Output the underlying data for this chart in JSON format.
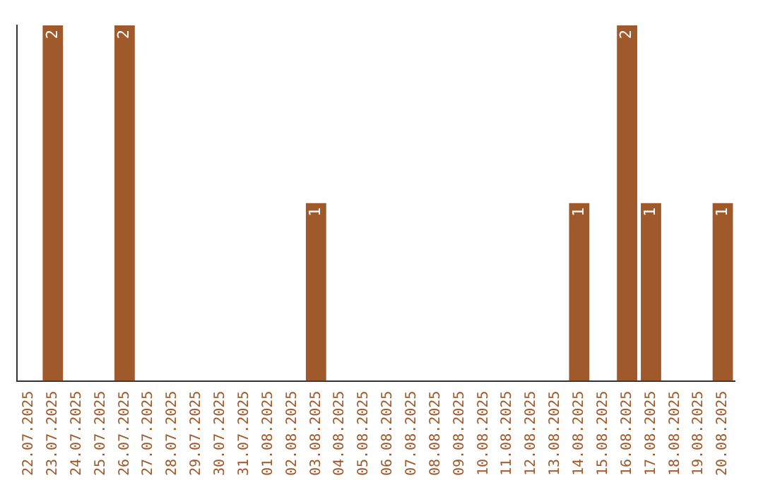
{
  "chart_data": {
    "type": "bar",
    "categories": [
      "22.07.2025",
      "23.07.2025",
      "24.07.2025",
      "25.07.2025",
      "26.07.2025",
      "27.07.2025",
      "28.07.2025",
      "29.07.2025",
      "30.07.2025",
      "31.07.2025",
      "01.08.2025",
      "02.08.2025",
      "03.08.2025",
      "04.08.2025",
      "05.08.2025",
      "06.08.2025",
      "07.08.2025",
      "08.08.2025",
      "09.08.2025",
      "10.08.2025",
      "11.08.2025",
      "12.08.2025",
      "13.08.2025",
      "14.08.2025",
      "15.08.2025",
      "16.08.2025",
      "17.08.2025",
      "18.08.2025",
      "19.08.2025",
      "20.08.2025"
    ],
    "values": [
      null,
      2,
      null,
      null,
      2,
      null,
      null,
      null,
      null,
      null,
      null,
      null,
      1,
      null,
      null,
      null,
      null,
      null,
      null,
      null,
      null,
      null,
      null,
      1,
      null,
      2,
      1,
      null,
      null,
      1
    ],
    "color": "#a0592a",
    "data_labels": true,
    "grid": false,
    "legend": false,
    "tick_labels": "x"
  }
}
